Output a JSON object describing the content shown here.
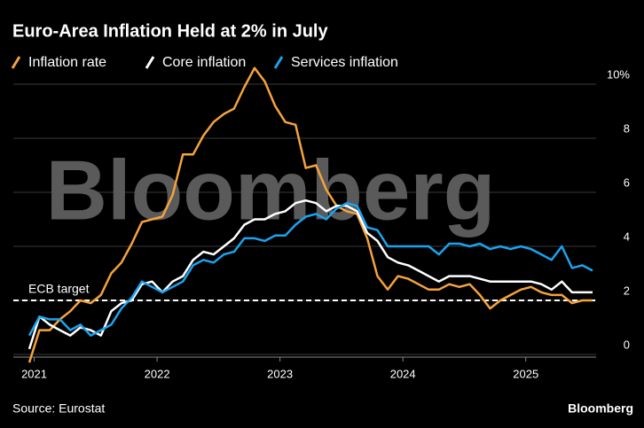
{
  "chart_data": {
    "type": "line",
    "title": "Euro-Area Inflation Held at 2% in July",
    "watermark": "Bloomberg",
    "source": "Source: Eurostat",
    "brand": "Bloomberg",
    "categories": [
      null,
      "2021",
      null,
      null,
      null,
      null,
      null,
      null,
      null,
      null,
      null,
      null,
      null,
      "2022",
      null,
      null,
      null,
      null,
      null,
      null,
      null,
      null,
      null,
      null,
      null,
      "2023",
      null,
      null,
      null,
      null,
      null,
      null,
      null,
      null,
      null,
      null,
      null,
      "2024",
      null,
      null,
      null,
      null,
      null,
      null,
      null,
      null,
      null,
      null,
      null,
      "2025",
      null,
      null,
      null,
      null,
      null,
      null
    ],
    "series": [
      {
        "name": "Inflation rate",
        "color": "#f5a33b",
        "values": [
          -0.3,
          0.9,
          0.9,
          1.3,
          1.6,
          2.0,
          1.9,
          2.2,
          3.0,
          3.4,
          4.1,
          4.9,
          5.0,
          5.1,
          5.9,
          7.4,
          7.4,
          8.1,
          8.6,
          8.9,
          9.1,
          9.9,
          10.6,
          10.1,
          9.2,
          8.6,
          8.5,
          6.9,
          7.0,
          6.1,
          5.5,
          5.3,
          5.2,
          4.3,
          2.9,
          2.4,
          2.9,
          2.8,
          2.6,
          2.4,
          2.4,
          2.6,
          2.5,
          2.6,
          2.2,
          1.7,
          2.0,
          2.2,
          2.4,
          2.5,
          2.3,
          2.2,
          2.2,
          1.9,
          2.0,
          2.0
        ]
      },
      {
        "name": "Core inflation",
        "color": "#ffffff",
        "values": [
          0.2,
          1.4,
          1.1,
          0.9,
          0.7,
          1.0,
          0.9,
          0.7,
          1.6,
          1.9,
          2.0,
          2.6,
          2.7,
          2.3,
          2.7,
          2.9,
          3.5,
          3.8,
          3.7,
          4.0,
          4.3,
          4.8,
          5.0,
          5.0,
          5.2,
          5.3,
          5.6,
          5.7,
          5.6,
          5.3,
          5.5,
          5.5,
          5.3,
          4.5,
          4.2,
          3.6,
          3.4,
          3.3,
          3.1,
          2.9,
          2.7,
          2.9,
          2.9,
          2.9,
          2.8,
          2.7,
          2.7,
          2.7,
          2.7,
          2.7,
          2.6,
          2.4,
          2.7,
          2.3,
          2.3,
          2.3
        ]
      },
      {
        "name": "Services inflation",
        "color": "#1ba3f0",
        "values": [
          0.7,
          1.4,
          1.3,
          1.3,
          0.9,
          1.1,
          0.7,
          0.9,
          1.1,
          1.7,
          2.1,
          2.7,
          2.5,
          2.3,
          2.5,
          2.7,
          3.3,
          3.5,
          3.4,
          3.7,
          3.8,
          4.3,
          4.3,
          4.2,
          4.4,
          4.4,
          4.8,
          5.1,
          5.2,
          5.0,
          5.4,
          5.6,
          5.5,
          4.7,
          4.6,
          4.0,
          4.0,
          4.0,
          4.0,
          4.0,
          3.7,
          4.1,
          4.1,
          4.0,
          4.1,
          3.9,
          4.0,
          3.9,
          4.0,
          3.9,
          3.7,
          3.5,
          4.0,
          3.2,
          3.3,
          3.1
        ]
      }
    ],
    "target": {
      "label": "ECB target",
      "value": 2
    },
    "ylim": [
      -0.8,
      10.8
    ],
    "yticks": [
      0,
      2,
      4,
      6,
      8,
      {
        "value": 10,
        "label": "10%"
      }
    ],
    "grid": true
  }
}
